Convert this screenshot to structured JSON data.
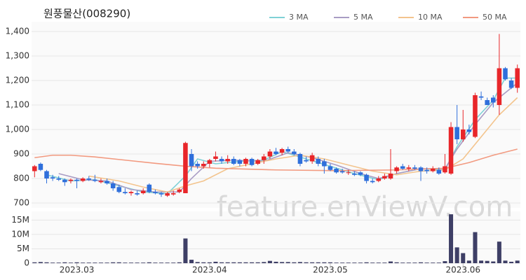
{
  "chart_data": {
    "type": "candlestick",
    "title": "원풍물산(008290)",
    "watermark": "feature.enViewV.com",
    "up_color": "#e8262a",
    "down_color": "#2f6fdb",
    "volume_color": "#3e3f66",
    "grid": true,
    "legend": "top-right",
    "xlim": [
      -0.5,
      80.5
    ],
    "xticks": [
      {
        "value": 7,
        "label": "2023.03"
      },
      {
        "value": 29,
        "label": "2023.04"
      },
      {
        "value": 49,
        "label": "2023.05"
      },
      {
        "value": 71,
        "label": "2023.06"
      }
    ],
    "ylim": [
      680,
      1440
    ],
    "yticks": [
      700,
      800,
      900,
      {
        "value": 1000,
        "label": "1,000"
      },
      {
        "value": 1100,
        "label": "1,100"
      },
      {
        "value": 1200,
        "label": "1,200"
      },
      {
        "value": 1300,
        "label": "1,300"
      },
      {
        "value": 1400,
        "label": "1,400"
      }
    ],
    "y2lim": [
      0,
      18000000
    ],
    "y2ticks": [
      0,
      {
        "value": 5000000,
        "label": "5M"
      },
      {
        "value": 10000000,
        "label": "10M"
      },
      {
        "value": 15000000,
        "label": "15M"
      }
    ],
    "ohlc": [
      [
        830,
        855,
        805,
        850
      ],
      [
        860,
        865,
        830,
        835
      ],
      [
        830,
        835,
        780,
        800
      ],
      [
        805,
        815,
        790,
        800
      ],
      [
        800,
        810,
        790,
        795
      ],
      [
        795,
        800,
        770,
        785
      ],
      [
        790,
        800,
        780,
        795
      ],
      [
        795,
        800,
        760,
        790
      ],
      [
        790,
        805,
        785,
        800
      ],
      [
        800,
        810,
        790,
        795
      ],
      [
        795,
        815,
        785,
        790
      ],
      [
        785,
        800,
        780,
        790
      ],
      [
        790,
        800,
        775,
        780
      ],
      [
        780,
        790,
        750,
        760
      ],
      [
        765,
        775,
        740,
        745
      ],
      [
        745,
        760,
        735,
        740
      ],
      [
        740,
        750,
        730,
        745
      ],
      [
        740,
        750,
        730,
        735
      ],
      [
        740,
        760,
        735,
        750
      ],
      [
        775,
        780,
        740,
        745
      ],
      [
        745,
        755,
        735,
        740
      ],
      [
        740,
        745,
        725,
        735
      ],
      [
        730,
        745,
        725,
        740
      ],
      [
        735,
        750,
        730,
        740
      ],
      [
        745,
        760,
        740,
        755
      ],
      [
        740,
        950,
        740,
        945
      ],
      [
        900,
        920,
        830,
        850
      ],
      [
        860,
        870,
        840,
        850
      ],
      [
        850,
        870,
        840,
        860
      ],
      [
        860,
        880,
        845,
        875
      ],
      [
        880,
        910,
        870,
        890
      ],
      [
        880,
        890,
        860,
        870
      ],
      [
        870,
        895,
        860,
        880
      ],
      [
        880,
        890,
        855,
        860
      ],
      [
        875,
        880,
        850,
        860
      ],
      [
        860,
        885,
        850,
        880
      ],
      [
        880,
        885,
        850,
        855
      ],
      [
        860,
        880,
        855,
        875
      ],
      [
        875,
        900,
        860,
        890
      ],
      [
        890,
        920,
        880,
        910
      ],
      [
        910,
        925,
        895,
        900
      ],
      [
        905,
        925,
        895,
        920
      ],
      [
        920,
        930,
        905,
        910
      ],
      [
        910,
        920,
        895,
        900
      ],
      [
        900,
        905,
        850,
        860
      ],
      [
        875,
        890,
        865,
        870
      ],
      [
        870,
        905,
        860,
        895
      ],
      [
        880,
        890,
        850,
        860
      ],
      [
        870,
        880,
        820,
        850
      ],
      [
        850,
        860,
        830,
        835
      ],
      [
        840,
        845,
        820,
        825
      ],
      [
        830,
        840,
        820,
        825
      ],
      [
        825,
        835,
        815,
        825
      ],
      [
        820,
        830,
        810,
        815
      ],
      [
        825,
        830,
        810,
        815
      ],
      [
        815,
        820,
        780,
        790
      ],
      [
        790,
        800,
        780,
        785
      ],
      [
        790,
        810,
        785,
        800
      ],
      [
        800,
        820,
        795,
        810
      ],
      [
        800,
        920,
        795,
        820
      ],
      [
        830,
        850,
        820,
        845
      ],
      [
        850,
        860,
        835,
        840
      ],
      [
        840,
        855,
        830,
        845
      ],
      [
        845,
        855,
        835,
        840
      ],
      [
        845,
        850,
        790,
        830
      ],
      [
        835,
        845,
        820,
        830
      ],
      [
        830,
        850,
        825,
        840
      ],
      [
        835,
        845,
        815,
        820
      ],
      [
        825,
        900,
        820,
        850
      ],
      [
        820,
        1030,
        815,
        1010
      ],
      [
        1010,
        1100,
        940,
        960
      ],
      [
        960,
        1080,
        950,
        1000
      ],
      [
        1000,
        1020,
        980,
        990
      ],
      [
        970,
        1150,
        965,
        1140
      ],
      [
        1135,
        1155,
        1120,
        1130
      ],
      [
        1120,
        1130,
        1100,
        1100
      ],
      [
        1130,
        1140,
        1090,
        1110
      ],
      [
        1100,
        1390,
        1060,
        1250
      ],
      [
        1250,
        1255,
        1200,
        1205
      ],
      [
        1200,
        1210,
        1165,
        1170
      ],
      [
        1170,
        1265,
        1150,
        1250
      ]
    ],
    "volume": [
      300000,
      400000,
      300000,
      200000,
      200000,
      300000,
      200000,
      300000,
      200000,
      200000,
      200000,
      200000,
      200000,
      300000,
      300000,
      200000,
      200000,
      200000,
      200000,
      300000,
      200000,
      200000,
      200000,
      200000,
      300000,
      8600000,
      1200000,
      400000,
      300000,
      300000,
      500000,
      300000,
      300000,
      300000,
      300000,
      300000,
      300000,
      300000,
      400000,
      800000,
      500000,
      400000,
      400000,
      300000,
      400000,
      300000,
      300000,
      300000,
      300000,
      300000,
      200000,
      200000,
      200000,
      200000,
      200000,
      300000,
      200000,
      200000,
      200000,
      600000,
      300000,
      200000,
      200000,
      200000,
      300000,
      200000,
      200000,
      200000,
      700000,
      17000000,
      5500000,
      3500000,
      900000,
      10800000,
      900000,
      800000,
      600000,
      7500000,
      900000,
      500000,
      900000
    ],
    "series": [
      {
        "name": "3 MA",
        "color": "#7fd1d6",
        "x": [
          2,
          6,
          10,
          14,
          18,
          22,
          25,
          27,
          30,
          34,
          38,
          41,
          45,
          49,
          53,
          57,
          60,
          64,
          68,
          70,
          73,
          76,
          78,
          80
        ],
        "values": [
          815,
          790,
          795,
          770,
          745,
          738,
          810,
          880,
          860,
          870,
          875,
          910,
          880,
          850,
          820,
          795,
          820,
          840,
          835,
          930,
          1040,
          1120,
          1210,
          1210
        ]
      },
      {
        "name": "5 MA",
        "color": "#a99cc4",
        "x": [
          4,
          8,
          12,
          16,
          20,
          24,
          26,
          29,
          33,
          38,
          42,
          46,
          50,
          54,
          57,
          60,
          64,
          68,
          70,
          73,
          76,
          79,
          80
        ],
        "values": [
          820,
          795,
          790,
          755,
          745,
          745,
          800,
          870,
          875,
          870,
          905,
          885,
          855,
          820,
          800,
          820,
          840,
          840,
          920,
          1020,
          1110,
          1170,
          1190
        ]
      },
      {
        "name": "10 MA",
        "color": "#f3c48d",
        "x": [
          9,
          14,
          18,
          22,
          25,
          28,
          32,
          36,
          40,
          44,
          48,
          52,
          56,
          60,
          64,
          68,
          71,
          74,
          77,
          80
        ],
        "values": [
          810,
          790,
          765,
          745,
          770,
          790,
          840,
          860,
          880,
          895,
          880,
          855,
          830,
          815,
          830,
          835,
          880,
          970,
          1060,
          1130
        ]
      },
      {
        "name": "50 MA",
        "color": "#f29a80",
        "x": [
          0,
          3,
          6,
          10,
          15,
          20,
          25,
          30,
          40,
          50,
          60,
          68,
          72,
          76,
          80
        ],
        "values": [
          885,
          895,
          895,
          888,
          875,
          862,
          850,
          842,
          835,
          832,
          835,
          842,
          865,
          895,
          920
        ]
      }
    ]
  }
}
